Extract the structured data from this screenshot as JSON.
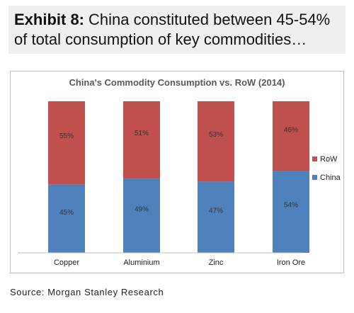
{
  "exhibit": {
    "label": "Exhibit 8:",
    "title": "China constituted between 45-54% of total consumption of key commodities…"
  },
  "source": "Source: Morgan Stanley Research",
  "chart_data": {
    "type": "bar",
    "stacked": true,
    "title": "China's Commodity Consumption vs. RoW (2014)",
    "categories": [
      "Copper",
      "Aluminium",
      "Zinc",
      "Iron Ore"
    ],
    "series": [
      {
        "name": "China",
        "values": [
          45,
          49,
          47,
          54
        ],
        "labels": [
          "45%",
          "49%",
          "47%",
          "54%"
        ],
        "color": "#4f81bd"
      },
      {
        "name": "RoW",
        "values": [
          55,
          51,
          53,
          46
        ],
        "labels": [
          "55%",
          "51%",
          "53%",
          "46%"
        ],
        "color": "#c0504d"
      }
    ],
    "ylim": [
      0,
      100
    ],
    "grid": false,
    "legend": "right"
  }
}
